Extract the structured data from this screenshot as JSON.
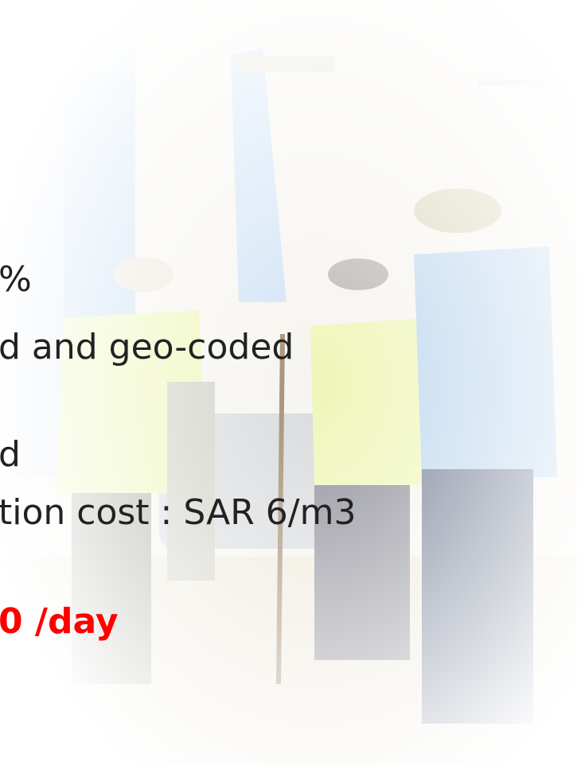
{
  "lines": [
    "%",
    "d and geo-coded",
    "d",
    "tion cost : SAR 6/m3",
    "0 /day"
  ]
}
